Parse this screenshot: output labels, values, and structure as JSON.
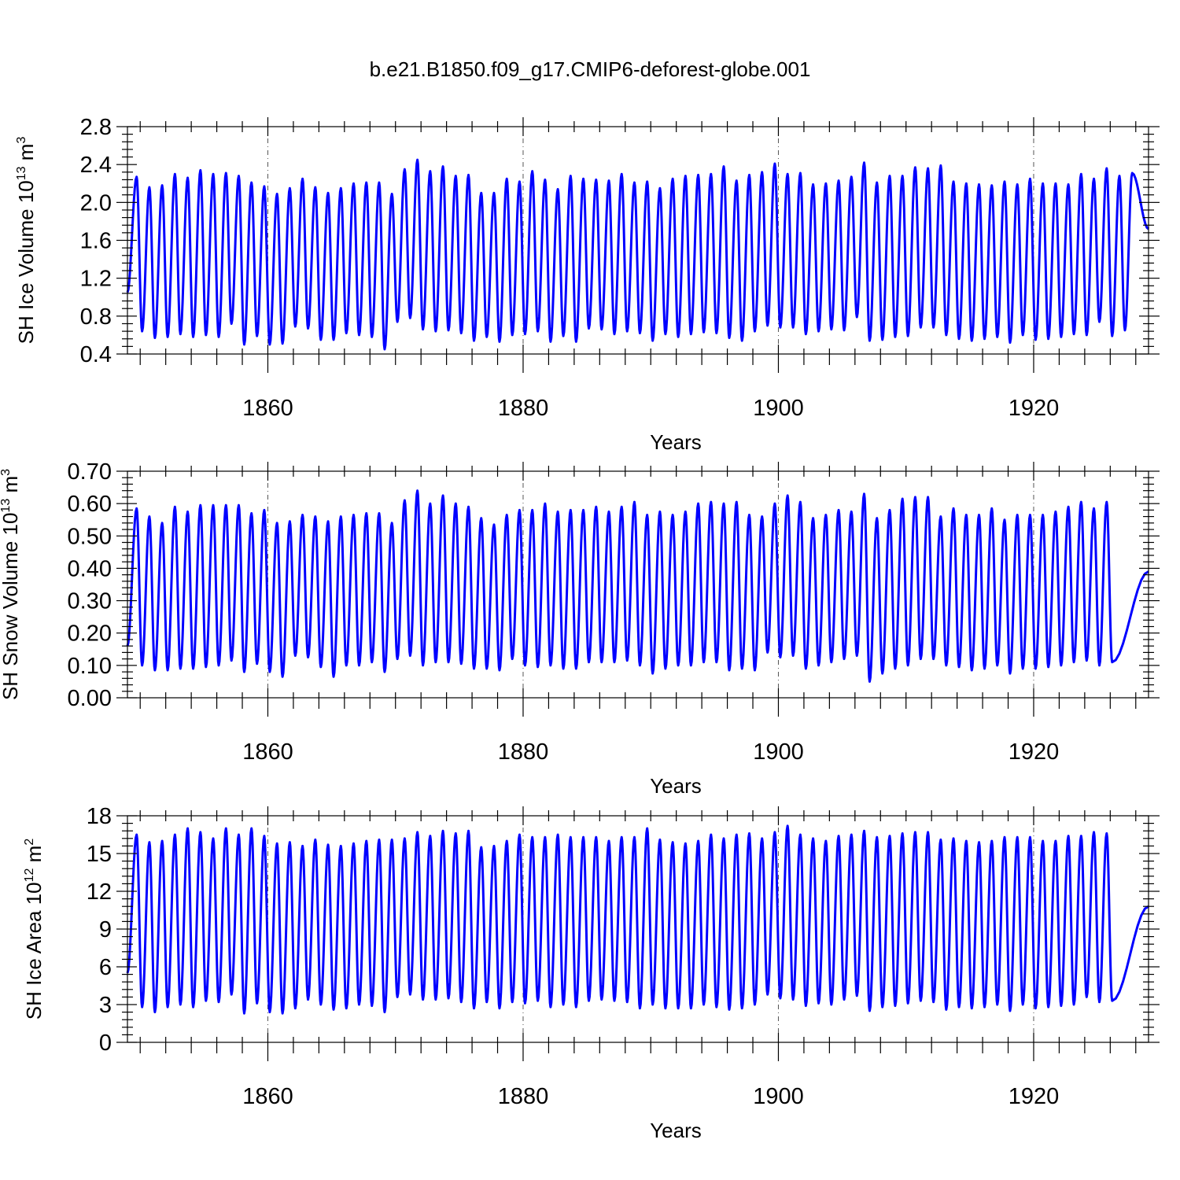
{
  "chart_data": {
    "title": "b.e21.B1850.f09_g17.CMIP6-deforest-globe.001",
    "line_color": "#0000ff",
    "panels": [
      {
        "type": "line",
        "ylabel": "SH Ice Volume 10",
        "ylabel_exp": "13",
        "ylabel_unit": " m",
        "ylabel_unit_exp": "3",
        "xlabel": "Years",
        "xlim": [
          1849,
          1929
        ],
        "ylim": [
          0.4,
          2.8
        ],
        "x_ticks": [
          1860,
          1880,
          1900,
          1920
        ],
        "x_tick_labels": [
          "1860",
          "1880",
          "1900",
          "1920"
        ],
        "y_ticks": [
          0.4,
          0.8,
          1.2,
          1.6,
          2.0,
          2.4,
          2.8
        ],
        "y_tick_labels": [
          "0.4",
          "0.8",
          "1.2",
          "1.6",
          "2.0",
          "2.4",
          "2.8"
        ],
        "start_value": 1.05,
        "end_value": 1.72,
        "maxima": [
          2.27,
          2.16,
          2.18,
          2.3,
          2.26,
          2.34,
          2.3,
          2.31,
          2.28,
          2.21,
          2.17,
          2.09,
          2.15,
          2.25,
          2.16,
          2.1,
          2.15,
          2.2,
          2.21,
          2.21,
          2.09,
          2.35,
          2.45,
          2.33,
          2.38,
          2.28,
          2.29,
          2.1,
          2.1,
          2.25,
          2.22,
          2.33,
          2.24,
          2.14,
          2.28,
          2.25,
          2.24,
          2.23,
          2.3,
          2.21,
          2.22,
          2.15,
          2.25,
          2.28,
          2.29,
          2.3,
          2.38,
          2.23,
          2.29,
          2.32,
          2.41,
          2.3,
          2.31,
          2.19,
          2.2,
          2.23,
          2.27,
          2.42,
          2.21,
          2.28,
          2.28,
          2.37,
          2.36,
          2.39,
          2.22,
          2.2,
          2.19,
          2.18,
          2.22,
          2.19,
          2.25,
          2.2,
          2.2,
          2.19,
          2.3,
          2.25,
          2.36,
          2.28,
          2.31
        ],
        "minima": [
          0.64,
          0.57,
          0.58,
          0.61,
          0.58,
          0.6,
          0.58,
          0.72,
          0.5,
          0.59,
          0.5,
          0.51,
          0.69,
          0.67,
          0.55,
          0.55,
          0.62,
          0.6,
          0.58,
          0.45,
          0.74,
          0.78,
          0.66,
          0.64,
          0.65,
          0.62,
          0.54,
          0.58,
          0.53,
          0.6,
          0.61,
          0.64,
          0.53,
          0.59,
          0.53,
          0.67,
          0.66,
          0.61,
          0.64,
          0.62,
          0.54,
          0.61,
          0.58,
          0.61,
          0.63,
          0.62,
          0.57,
          0.54,
          0.64,
          0.7,
          0.68,
          0.68,
          0.61,
          0.64,
          0.66,
          0.65,
          0.79,
          0.54,
          0.55,
          0.58,
          0.59,
          0.68,
          0.68,
          0.6,
          0.56,
          0.54,
          0.56,
          0.58,
          0.52,
          0.6,
          0.55,
          0.56,
          0.58,
          0.61,
          0.6,
          0.74,
          0.59,
          0.65
        ]
      },
      {
        "type": "line",
        "ylabel": "SH Snow Volume 10",
        "ylabel_exp": "13",
        "ylabel_unit": " m",
        "ylabel_unit_exp": "3",
        "xlabel": "Years",
        "xlim": [
          1849,
          1929
        ],
        "ylim": [
          0.0,
          0.7
        ],
        "x_ticks": [
          1860,
          1880,
          1900,
          1920
        ],
        "x_tick_labels": [
          "1860",
          "1880",
          "1900",
          "1920"
        ],
        "y_ticks": [
          0.0,
          0.1,
          0.2,
          0.3,
          0.4,
          0.5,
          0.6,
          0.7
        ],
        "y_tick_labels": [
          "0.00",
          "0.10",
          "0.20",
          "0.30",
          "0.40",
          "0.50",
          "0.60",
          "0.70"
        ],
        "start_value": 0.16,
        "end_value": 0.39,
        "maxima": [
          0.585,
          0.56,
          0.54,
          0.59,
          0.575,
          0.595,
          0.595,
          0.595,
          0.595,
          0.57,
          0.58,
          0.54,
          0.545,
          0.565,
          0.56,
          0.545,
          0.56,
          0.565,
          0.57,
          0.57,
          0.54,
          0.61,
          0.64,
          0.6,
          0.625,
          0.6,
          0.59,
          0.555,
          0.535,
          0.565,
          0.58,
          0.58,
          0.6,
          0.575,
          0.58,
          0.58,
          0.59,
          0.575,
          0.59,
          0.605,
          0.565,
          0.575,
          0.565,
          0.575,
          0.6,
          0.605,
          0.6,
          0.605,
          0.565,
          0.56,
          0.6,
          0.625,
          0.605,
          0.555,
          0.565,
          0.58,
          0.575,
          0.63,
          0.555,
          0.58,
          0.615,
          0.62,
          0.62,
          0.56,
          0.585,
          0.565,
          0.565,
          0.585,
          0.55,
          0.565,
          0.565,
          0.565,
          0.575,
          0.59,
          0.605,
          0.585,
          0.605
        ],
        "minima": [
          0.1,
          0.085,
          0.085,
          0.09,
          0.09,
          0.095,
          0.1,
          0.115,
          0.08,
          0.105,
          0.08,
          0.065,
          0.13,
          0.125,
          0.095,
          0.065,
          0.1,
          0.1,
          0.11,
          0.08,
          0.12,
          0.13,
          0.1,
          0.11,
          0.11,
          0.105,
          0.09,
          0.09,
          0.085,
          0.12,
          0.1,
          0.095,
          0.1,
          0.09,
          0.09,
          0.11,
          0.11,
          0.11,
          0.115,
          0.1,
          0.075,
          0.09,
          0.1,
          0.1,
          0.11,
          0.11,
          0.085,
          0.09,
          0.085,
          0.14,
          0.125,
          0.13,
          0.09,
          0.1,
          0.11,
          0.12,
          0.13,
          0.05,
          0.075,
          0.09,
          0.1,
          0.12,
          0.12,
          0.1,
          0.095,
          0.085,
          0.09,
          0.1,
          0.075,
          0.09,
          0.09,
          0.095,
          0.1,
          0.11,
          0.115,
          0.1,
          0.11
        ]
      },
      {
        "type": "line",
        "ylabel": "SH Ice Area 10",
        "ylabel_exp": "12",
        "ylabel_unit": " m",
        "ylabel_unit_exp": "2",
        "xlabel": "Years",
        "xlim": [
          1849,
          1929
        ],
        "ylim": [
          0,
          18
        ],
        "x_ticks": [
          1860,
          1880,
          1900,
          1920
        ],
        "x_tick_labels": [
          "1860",
          "1880",
          "1900",
          "1920"
        ],
        "y_ticks": [
          0,
          3,
          6,
          9,
          12,
          15,
          18
        ],
        "y_tick_labels": [
          "0",
          "3",
          "6",
          "9",
          "12",
          "15",
          "18"
        ],
        "start_value": 5.5,
        "end_value": 10.8,
        "maxima": [
          16.5,
          15.9,
          16.0,
          16.5,
          17.0,
          16.7,
          16.2,
          17.0,
          16.5,
          17.0,
          16.4,
          15.8,
          15.9,
          15.6,
          16.1,
          15.7,
          15.6,
          15.8,
          16.0,
          16.1,
          16.1,
          16.2,
          16.7,
          16.4,
          16.8,
          16.6,
          16.8,
          15.5,
          15.6,
          16.0,
          16.5,
          16.3,
          16.3,
          16.5,
          16.3,
          16.3,
          16.3,
          16.0,
          16.3,
          16.3,
          17.0,
          16.1,
          15.9,
          15.8,
          16.0,
          16.5,
          16.2,
          16.5,
          16.6,
          16.2,
          16.7,
          17.2,
          16.5,
          16.2,
          16.0,
          16.4,
          16.5,
          16.8,
          16.3,
          16.4,
          16.6,
          16.7,
          16.7,
          16.1,
          16.2,
          16.0,
          15.9,
          16.0,
          16.3,
          16.3,
          16.3,
          16.0,
          16.0,
          16.4,
          16.4,
          16.7,
          16.6
        ],
        "minima": [
          2.8,
          2.4,
          2.8,
          3.0,
          2.8,
          3.3,
          3.2,
          3.8,
          2.3,
          3.1,
          2.4,
          2.3,
          2.7,
          3.4,
          3.0,
          2.6,
          2.7,
          3.0,
          2.9,
          2.4,
          3.6,
          3.8,
          3.4,
          3.4,
          3.5,
          3.2,
          2.7,
          3.2,
          2.7,
          3.2,
          3.1,
          3.3,
          2.8,
          3.0,
          2.8,
          3.3,
          3.4,
          3.3,
          3.2,
          2.7,
          3.0,
          2.7,
          2.7,
          2.7,
          3.0,
          2.8,
          2.6,
          2.7,
          3.0,
          3.8,
          3.5,
          3.4,
          2.9,
          3.1,
          3.0,
          3.4,
          3.7,
          2.5,
          2.8,
          2.9,
          3.1,
          3.3,
          3.2,
          2.6,
          2.8,
          2.7,
          2.8,
          3.0,
          2.5,
          3.0,
          2.7,
          2.8,
          2.9,
          3.0,
          3.6,
          3.2,
          3.3
        ]
      }
    ]
  }
}
